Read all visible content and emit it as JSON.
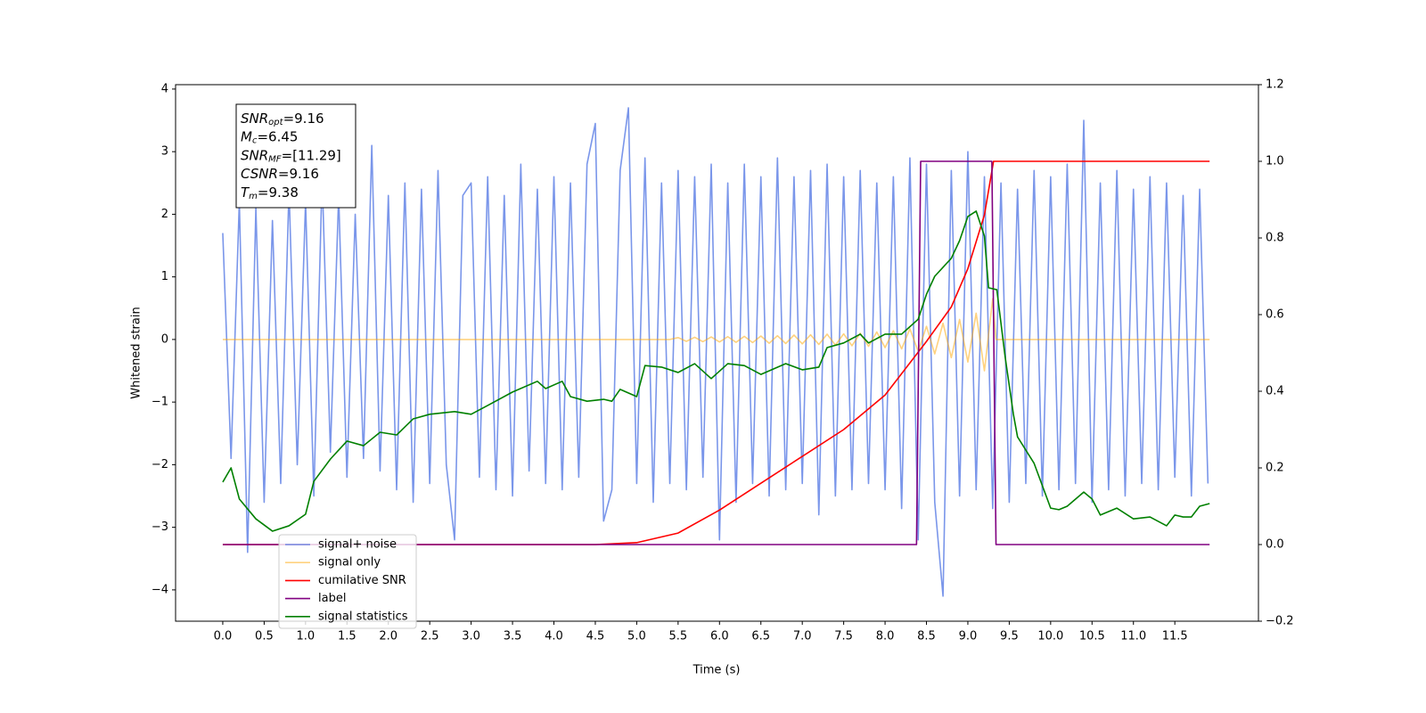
{
  "chart_data": {
    "type": "line",
    "xlabel": "Time (s)",
    "ylabel": "Whitened strain",
    "xlim": [
      -0.57,
      12.51
    ],
    "ylim": [
      -4.5,
      4.07
    ],
    "y2lim": [
      -0.2,
      1.2
    ],
    "xticks": [
      {
        "value": 0,
        "label": "0.0"
      },
      0.5,
      {
        "value": 1,
        "label": "1.0"
      },
      1.5,
      {
        "value": 2,
        "label": "2.0"
      },
      2.5,
      {
        "value": 3,
        "label": "3.0"
      },
      3.5,
      {
        "value": 4,
        "label": "4.0"
      },
      4.5,
      {
        "value": 5,
        "label": "5.0"
      },
      5.5,
      {
        "value": 6,
        "label": "6.0"
      },
      6.5,
      {
        "value": 7,
        "label": "7.0"
      },
      7.5,
      {
        "value": 8,
        "label": "8.0"
      },
      8.5,
      {
        "value": 9,
        "label": "9.0"
      },
      9.5,
      {
        "value": 10,
        "label": "10.0"
      },
      10.5,
      {
        "value": 11,
        "label": "11.0"
      },
      11.5
    ],
    "yticks": [
      {
        "value": -4,
        "label": "−4"
      },
      {
        "value": -3,
        "label": "−3"
      },
      {
        "value": -2,
        "label": "−2"
      },
      {
        "value": -1,
        "label": "−1"
      },
      0,
      1,
      2,
      3,
      4
    ],
    "y2ticks": [
      {
        "value": -0.2,
        "label": "−0.2"
      },
      {
        "value": 0,
        "label": "0.0"
      },
      0.2,
      0.4,
      0.6,
      0.8,
      {
        "value": 1,
        "label": "1.0"
      },
      1.2
    ],
    "annotation": [
      {
        "text": "SNR",
        "sub": "opt",
        "rest": "=9.16"
      },
      {
        "text": "M",
        "sub": "c",
        "rest": "=6.45"
      },
      {
        "text": "SNR",
        "sub": "MF",
        "rest": "=[11.29]"
      },
      {
        "text": "CSNR",
        "sub": "",
        "rest": "=9.16"
      },
      {
        "text": "T",
        "sub": "m",
        "rest": "=9.38"
      }
    ],
    "series": [
      {
        "name": "signal+ noise",
        "color": "#4169e1",
        "alpha": 0.7,
        "x": [
          0,
          0.1,
          0.2,
          0.3,
          0.4,
          0.5,
          0.6,
          0.7,
          0.8,
          0.9,
          1,
          1.1,
          1.2,
          1.3,
          1.4,
          1.5,
          1.6,
          1.7,
          1.8,
          1.9,
          2,
          2.1,
          2.2,
          2.3,
          2.4,
          2.5,
          2.6,
          2.7,
          2.8,
          2.9,
          3,
          3.1,
          3.2,
          3.3,
          3.4,
          3.5,
          3.6,
          3.7,
          3.8,
          3.9,
          4,
          4.1,
          4.2,
          4.3,
          4.4,
          4.5,
          4.6,
          4.7,
          4.8,
          4.9,
          5,
          5.1,
          5.2,
          5.3,
          5.4,
          5.5,
          5.6,
          5.7,
          5.8,
          5.9,
          6,
          6.1,
          6.2,
          6.3,
          6.4,
          6.5,
          6.6,
          6.7,
          6.8,
          6.9,
          7,
          7.1,
          7.2,
          7.3,
          7.4,
          7.5,
          7.6,
          7.7,
          7.8,
          7.9,
          8,
          8.1,
          8.2,
          8.3,
          8.4,
          8.5,
          8.6,
          8.7,
          8.8,
          8.9,
          9,
          9.1,
          9.2,
          9.3,
          9.4,
          9.5,
          9.6,
          9.7,
          9.8,
          9.9,
          10,
          10.1,
          10.2,
          10.3,
          10.4,
          10.5,
          10.6,
          10.7,
          10.8,
          10.9,
          11,
          11.1,
          11.2,
          11.3,
          11.4,
          11.5,
          11.6,
          11.7,
          11.8,
          11.9
        ],
        "values": [
          1.7,
          -1.9,
          2.2,
          -3.4,
          2.1,
          -2.6,
          1.9,
          -2.3,
          2.4,
          -2.0,
          2.2,
          -2.5,
          2.6,
          -1.8,
          2.3,
          -2.2,
          2.0,
          -1.9,
          3.1,
          -2.1,
          2.3,
          -2.4,
          2.5,
          -2.6,
          2.4,
          -2.3,
          2.7,
          -2.0,
          -3.2,
          2.3,
          2.5,
          -2.2,
          2.6,
          -2.4,
          2.3,
          -2.5,
          2.8,
          -2.1,
          2.4,
          -2.3,
          2.6,
          -2.4,
          2.5,
          -2.2,
          2.8,
          3.45,
          -2.9,
          -2.4,
          2.7,
          3.7,
          -2.3,
          2.9,
          -2.6,
          2.5,
          -2.3,
          2.7,
          -2.4,
          2.6,
          -2.2,
          2.8,
          -3.2,
          2.5,
          -2.6,
          2.8,
          -2.3,
          2.6,
          -2.5,
          2.9,
          -2.4,
          2.6,
          -2.3,
          2.7,
          -2.8,
          2.8,
          -2.5,
          2.6,
          -2.4,
          2.7,
          -2.3,
          2.5,
          -2.4,
          2.6,
          -2.7,
          2.9,
          -3.2,
          2.8,
          -2.6,
          -4.1,
          2.7,
          -2.5,
          3.0,
          -2.4,
          2.6,
          -2.7,
          2.5,
          -2.6,
          2.4,
          -2.3,
          2.7,
          -2.5,
          2.6,
          -2.4,
          2.8,
          -2.3,
          3.5,
          -2.6,
          2.5,
          -2.4,
          2.7,
          -2.5,
          2.4,
          -2.3,
          2.6,
          -2.4,
          2.5,
          -2.2,
          2.3,
          -2.5,
          2.4,
          -2.3
        ]
      },
      {
        "name": "signal only",
        "color": "#ffa500",
        "alpha": 0.5,
        "x": [
          0,
          5.4,
          5.5,
          5.6,
          5.7,
          5.8,
          5.9,
          6.0,
          6.1,
          6.2,
          6.3,
          6.4,
          6.5,
          6.6,
          6.7,
          6.8,
          6.9,
          7.0,
          7.1,
          7.2,
          7.3,
          7.4,
          7.5,
          7.6,
          7.7,
          7.8,
          7.9,
          8.0,
          8.1,
          8.2,
          8.3,
          8.4,
          8.5,
          8.6,
          8.7,
          8.8,
          8.9,
          9.0,
          9.1,
          9.2,
          9.3,
          9.34,
          11.92
        ],
        "values": [
          0,
          0,
          0.03,
          -0.03,
          0.035,
          -0.035,
          0.04,
          -0.04,
          0.045,
          -0.045,
          0.05,
          -0.05,
          0.055,
          -0.06,
          0.06,
          -0.065,
          0.07,
          -0.07,
          0.075,
          -0.08,
          0.085,
          -0.09,
          0.09,
          -0.1,
          0.1,
          -0.11,
          0.12,
          -0.13,
          0.14,
          -0.15,
          0.17,
          -0.19,
          0.21,
          -0.23,
          0.26,
          -0.29,
          0.32,
          -0.36,
          0.42,
          -0.5,
          0.65,
          0,
          0
        ]
      },
      {
        "name": "cumilative SNR",
        "color": "#ff0000",
        "axis": "y2",
        "x": [
          0,
          4.5,
          5.0,
          5.5,
          6.0,
          6.5,
          7.0,
          7.5,
          8.0,
          8.5,
          8.8,
          9.0,
          9.2,
          9.31,
          11.92
        ],
        "values": [
          0,
          0,
          0.005,
          0.03,
          0.09,
          0.16,
          0.23,
          0.3,
          0.39,
          0.53,
          0.62,
          0.72,
          0.86,
          1.0,
          1.0
        ]
      },
      {
        "name": "label",
        "color": "#800080",
        "axis": "y2",
        "x": [
          0,
          8.38,
          8.43,
          9.29,
          9.34,
          11.92
        ],
        "values": [
          0,
          0,
          1,
          1,
          0,
          0
        ]
      },
      {
        "name": "signal statistics",
        "color": "#008000",
        "axis": "y2",
        "x": [
          0,
          0.1,
          0.2,
          0.4,
          0.6,
          0.8,
          1.0,
          1.1,
          1.3,
          1.5,
          1.7,
          1.9,
          2.1,
          2.3,
          2.5,
          2.8,
          3.0,
          3.2,
          3.5,
          3.8,
          3.9,
          4.1,
          4.2,
          4.4,
          4.6,
          4.7,
          4.8,
          5.0,
          5.1,
          5.3,
          5.5,
          5.7,
          5.9,
          6.1,
          6.3,
          6.5,
          6.8,
          7.0,
          7.2,
          7.3,
          7.5,
          7.7,
          7.8,
          8.0,
          8.2,
          8.4,
          8.5,
          8.6,
          8.8,
          8.9,
          9.0,
          9.1,
          9.2,
          9.25,
          9.35,
          9.45,
          9.55,
          9.6,
          9.8,
          10.0,
          10.1,
          10.2,
          10.4,
          10.5,
          10.6,
          10.8,
          11.0,
          11.2,
          11.4,
          11.5,
          11.6,
          11.7,
          11.8,
          11.92
        ],
        "values": [
          0.163,
          0.2,
          0.119,
          0.067,
          0.035,
          0.049,
          0.079,
          0.165,
          0.223,
          0.27,
          0.258,
          0.293,
          0.286,
          0.328,
          0.34,
          0.347,
          0.34,
          0.363,
          0.398,
          0.426,
          0.407,
          0.426,
          0.386,
          0.374,
          0.379,
          0.374,
          0.405,
          0.386,
          0.467,
          0.463,
          0.449,
          0.472,
          0.433,
          0.472,
          0.467,
          0.444,
          0.472,
          0.456,
          0.463,
          0.514,
          0.526,
          0.549,
          0.526,
          0.549,
          0.549,
          0.588,
          0.653,
          0.7,
          0.747,
          0.793,
          0.856,
          0.87,
          0.805,
          0.67,
          0.665,
          0.49,
          0.34,
          0.281,
          0.212,
          0.095,
          0.091,
          0.1,
          0.137,
          0.119,
          0.077,
          0.095,
          0.067,
          0.072,
          0.049,
          0.077,
          0.072,
          0.072,
          0.1,
          0.107
        ]
      }
    ]
  }
}
